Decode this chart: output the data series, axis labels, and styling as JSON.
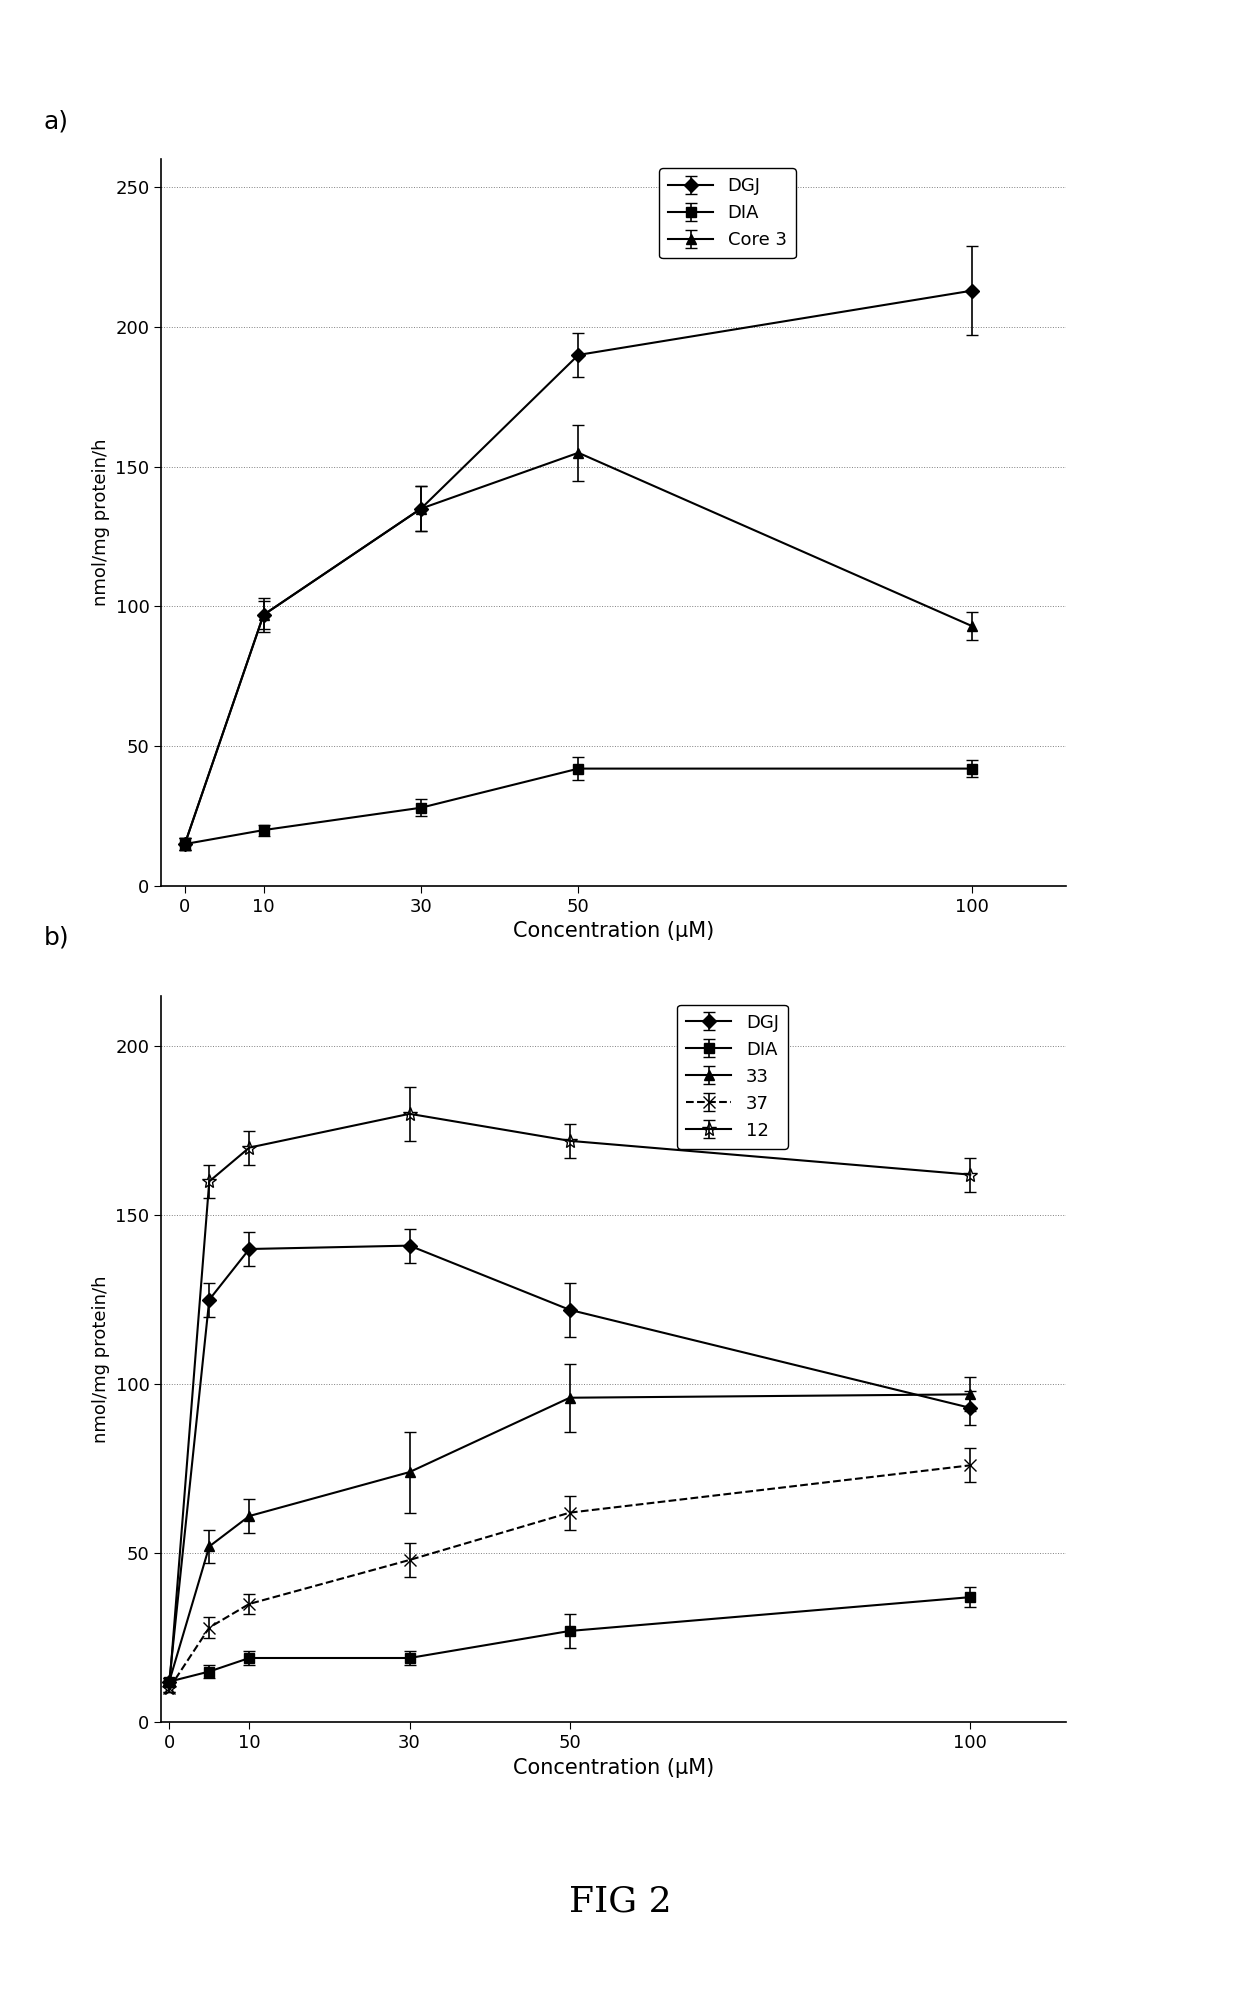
{
  "panel_a": {
    "xlabel": "Concentration (μM)",
    "ylabel": "nmol/mg protein/h",
    "ylim": [
      0,
      260
    ],
    "yticks": [
      0,
      50,
      100,
      150,
      200,
      250
    ],
    "xlim": [
      -3,
      112
    ],
    "xticks": [
      0,
      10,
      30,
      50,
      100
    ],
    "series": [
      {
        "label": "DGJ",
        "x": [
          0,
          10,
          30,
          50,
          100
        ],
        "y": [
          15,
          97,
          135,
          190,
          213
        ],
        "yerr": [
          2,
          6,
          8,
          8,
          16
        ],
        "marker": "D",
        "linestyle": "-",
        "markersize": 7,
        "markerfill": true
      },
      {
        "label": "DIA",
        "x": [
          0,
          10,
          30,
          50,
          100
        ],
        "y": [
          15,
          20,
          28,
          42,
          42
        ],
        "yerr": [
          2,
          2,
          3,
          4,
          3
        ],
        "marker": "s",
        "linestyle": "-",
        "markersize": 7,
        "markerfill": true
      },
      {
        "label": "Core 3",
        "x": [
          0,
          10,
          30,
          50,
          100
        ],
        "y": [
          15,
          97,
          135,
          155,
          93
        ],
        "yerr": [
          2,
          5,
          8,
          10,
          5
        ],
        "marker": "^",
        "linestyle": "-",
        "markersize": 7,
        "markerfill": true
      }
    ]
  },
  "panel_b": {
    "xlabel": "Concentration (μM)",
    "ylabel": "nmol/mg protein/h",
    "ylim": [
      0,
      215
    ],
    "yticks": [
      0,
      50,
      100,
      150,
      200
    ],
    "xlim": [
      -1,
      112
    ],
    "xticks": [
      0,
      10,
      30,
      50,
      100
    ],
    "series": [
      {
        "label": "DGJ",
        "x": [
          0,
          5,
          10,
          30,
          50,
          100
        ],
        "y": [
          12,
          125,
          140,
          141,
          122,
          93
        ],
        "yerr": [
          1,
          5,
          5,
          5,
          8,
          5
        ],
        "marker": "D",
        "linestyle": "-",
        "markersize": 7,
        "markerfill": true
      },
      {
        "label": "DIA",
        "x": [
          0,
          5,
          10,
          30,
          50,
          100
        ],
        "y": [
          12,
          15,
          19,
          19,
          27,
          37
        ],
        "yerr": [
          1,
          2,
          2,
          2,
          5,
          3
        ],
        "marker": "s",
        "linestyle": "-",
        "markersize": 7,
        "markerfill": true
      },
      {
        "label": "33",
        "x": [
          0,
          5,
          10,
          30,
          50,
          100
        ],
        "y": [
          12,
          52,
          61,
          74,
          96,
          97
        ],
        "yerr": [
          1,
          5,
          5,
          12,
          10,
          5
        ],
        "marker": "^",
        "linestyle": "-",
        "markersize": 7,
        "markerfill": true
      },
      {
        "label": "37",
        "x": [
          0,
          5,
          10,
          30,
          50,
          100
        ],
        "y": [
          10,
          28,
          35,
          48,
          62,
          76
        ],
        "yerr": [
          1,
          3,
          3,
          5,
          5,
          5
        ],
        "marker": "x",
        "linestyle": "--",
        "markersize": 9,
        "markerfill": false
      },
      {
        "label": "12",
        "x": [
          0,
          5,
          10,
          30,
          50,
          100
        ],
        "y": [
          10,
          160,
          170,
          180,
          172,
          162
        ],
        "yerr": [
          1,
          5,
          5,
          8,
          5,
          5
        ],
        "marker": "*",
        "linestyle": "-",
        "markersize": 10,
        "markerfill": false
      }
    ]
  },
  "fig_title": "FIG 2",
  "label_a": "a)",
  "label_b": "b)",
  "background_color": "#ffffff",
  "line_color": "#000000"
}
